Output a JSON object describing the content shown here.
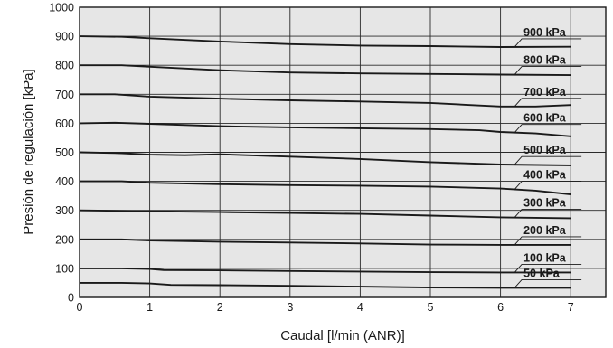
{
  "chart_data": {
    "type": "line",
    "title": "",
    "xlabel": "Caudal [l/min (ANR)]",
    "ylabel": "Presión de regulación [kPa]",
    "xlim": [
      0,
      7.5
    ],
    "ylim": [
      0,
      1000
    ],
    "x_ticks": [
      "0",
      "1",
      "2",
      "3",
      "4",
      "5",
      "6",
      "7"
    ],
    "y_ticks": [
      "0",
      "100",
      "200",
      "300",
      "400",
      "500",
      "600",
      "700",
      "800",
      "900",
      "1000"
    ],
    "grid": true,
    "colors": {
      "plot_background": "#e6e6e6",
      "line": "#1a1a1a",
      "grid": "#2a2a2a"
    },
    "series": [
      {
        "name": "900 kPa",
        "x": [
          0,
          0.6,
          1,
          2,
          3,
          4,
          5,
          6,
          7
        ],
        "y": [
          900,
          898,
          893,
          882,
          873,
          868,
          866,
          863,
          864
        ]
      },
      {
        "name": "800 kPa",
        "x": [
          0,
          0.6,
          1,
          2,
          3,
          4,
          5,
          6,
          7
        ],
        "y": [
          800,
          800,
          795,
          783,
          775,
          772,
          770,
          768,
          766
        ]
      },
      {
        "name": "700 kPa",
        "x": [
          0,
          0.5,
          1,
          2,
          3,
          4,
          5,
          5.5,
          6,
          6.5,
          7
        ],
        "y": [
          700,
          700,
          692,
          685,
          679,
          675,
          670,
          664,
          658,
          658,
          663
        ]
      },
      {
        "name": "600 kPa",
        "x": [
          0,
          0.5,
          1,
          2,
          3,
          4,
          5,
          5.7,
          6,
          6.5,
          7
        ],
        "y": [
          600,
          602,
          598,
          590,
          586,
          583,
          580,
          576,
          570,
          565,
          555
        ]
      },
      {
        "name": "500 kPa",
        "x": [
          0,
          0.6,
          1,
          1.5,
          2,
          3,
          4,
          5,
          6,
          7
        ],
        "y": [
          500,
          497,
          492,
          490,
          493,
          485,
          477,
          466,
          458,
          455
        ]
      },
      {
        "name": "400 kPa",
        "x": [
          0,
          0.6,
          1,
          2,
          3,
          4,
          5,
          6,
          6.5,
          7
        ],
        "y": [
          400,
          400,
          395,
          390,
          387,
          385,
          382,
          375,
          368,
          355
        ]
      },
      {
        "name": "300 kPa",
        "x": [
          0,
          1,
          2,
          3,
          4,
          5,
          6,
          7
        ],
        "y": [
          300,
          297,
          294,
          291,
          288,
          282,
          276,
          273
        ]
      },
      {
        "name": "200 kPa",
        "x": [
          0,
          0.6,
          1,
          2,
          3,
          4,
          5,
          6,
          7
        ],
        "y": [
          200,
          200,
          196,
          192,
          189,
          186,
          182,
          181,
          181
        ]
      },
      {
        "name": "100 kPa",
        "x": [
          0,
          0.6,
          1,
          1.2,
          2,
          3,
          4,
          5,
          6,
          7
        ],
        "y": [
          100,
          100,
          98,
          94,
          93,
          91,
          89,
          87,
          86,
          86
        ]
      },
      {
        "name": "50 kPa",
        "x": [
          0,
          0.6,
          1,
          1.3,
          2,
          3,
          4,
          5,
          6,
          7
        ],
        "y": [
          50,
          50,
          48,
          43,
          42,
          40,
          37,
          34,
          33,
          33
        ]
      }
    ]
  }
}
